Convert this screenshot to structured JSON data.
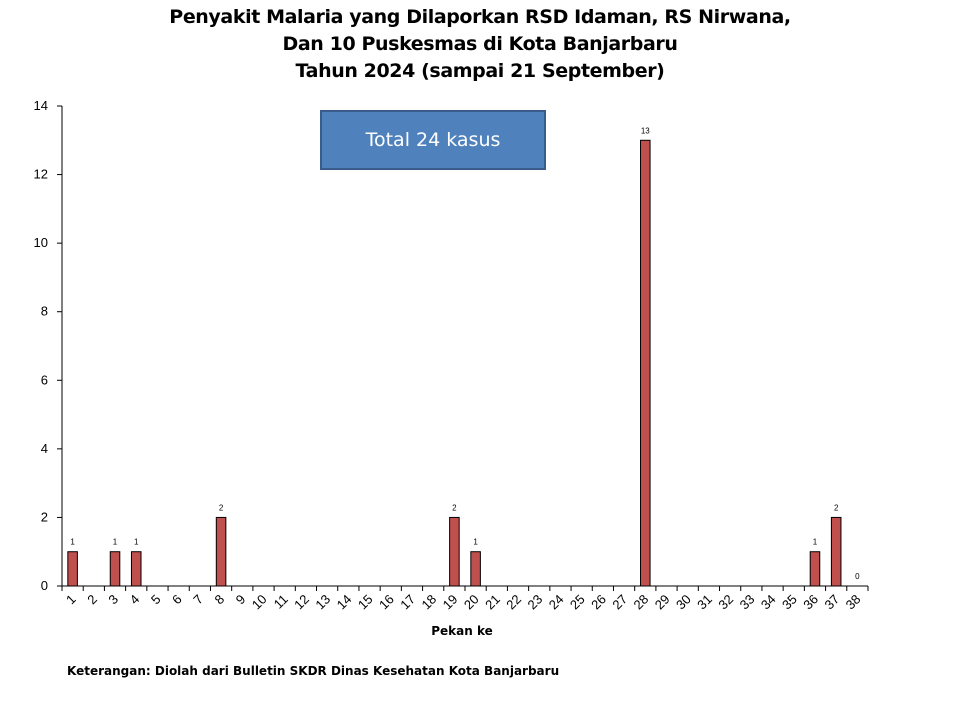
{
  "chart_data": {
    "type": "bar",
    "title_lines": [
      "Penyakit Malaria yang Dilaporkan RSD Idaman, RS Nirwana,",
      "Dan 10 Puskesmas di Kota Banjarbaru",
      "Tahun 2024 (sampai 21 September)"
    ],
    "xlabel": "Pekan ke",
    "ylabel": "",
    "ylim": [
      0,
      14
    ],
    "yticks": [
      0,
      2,
      4,
      6,
      8,
      10,
      12,
      14
    ],
    "categories": [
      "1",
      "2",
      "3",
      "4",
      "5",
      "6",
      "7",
      "8",
      "9",
      "10",
      "11",
      "12",
      "13",
      "14",
      "15",
      "16",
      "17",
      "18",
      "19",
      "20",
      "21",
      "22",
      "23",
      "24",
      "25",
      "26",
      "27",
      "28",
      "29",
      "30",
      "31",
      "32",
      "33",
      "34",
      "35",
      "36",
      "37",
      "38"
    ],
    "values": [
      1,
      0,
      1,
      1,
      0,
      0,
      0,
      2,
      0,
      0,
      0,
      0,
      0,
      0,
      0,
      0,
      0,
      0,
      2,
      1,
      0,
      0,
      0,
      0,
      0,
      0,
      0,
      13,
      0,
      0,
      0,
      0,
      0,
      0,
      0,
      1,
      2,
      0
    ],
    "data_labels": [
      {
        "category": "1",
        "text": "1"
      },
      {
        "category": "3",
        "text": "1"
      },
      {
        "category": "4",
        "text": "1"
      },
      {
        "category": "8",
        "text": "2"
      },
      {
        "category": "19",
        "text": "2"
      },
      {
        "category": "20",
        "text": "1"
      },
      {
        "category": "28",
        "text": "13"
      },
      {
        "category": "36",
        "text": "1"
      },
      {
        "category": "37",
        "text": "2"
      },
      {
        "category": "38",
        "text": "0"
      }
    ],
    "bar_color": "#c0504d",
    "bar_edge_color": "#000000",
    "grid": false,
    "legend": "none",
    "annotation": "Total 24 kasus",
    "annotation_color": "#4f81bd"
  },
  "footnote": "Keterangan: Diolah dari Bulletin SKDR Dinas Kesehatan Kota Banjarbaru"
}
